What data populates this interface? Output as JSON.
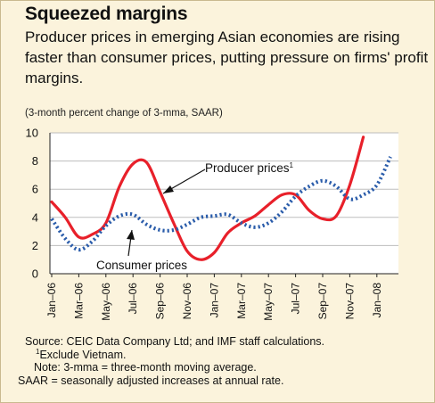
{
  "title": "Squeezed margins",
  "subtitle": "Producer prices in emerging Asian economies are rising faster than consumer prices, putting pressure on firms' profit margins.",
  "units_note": "(3-month percent change of 3-mma, SAAR)",
  "colors": {
    "background": "#fbf3dc",
    "plot_background": "#ffffff",
    "producer": "#e8202a",
    "consumer": "#2a5caa",
    "grid": "#bdbdbd"
  },
  "chart_data": {
    "type": "line",
    "ylim": [
      0,
      10
    ],
    "yticks": [
      0,
      2,
      4,
      6,
      8,
      10
    ],
    "grid": true,
    "x_tick_labels": [
      "Jan–06",
      "Mar–06",
      "May–06",
      "Jul–06",
      "Sep–06",
      "Nov–06",
      "Jan–07",
      "Mar–07",
      "May–07",
      "Jul–07",
      "Sep–07",
      "Nov–07",
      "Jan–08"
    ],
    "x_months": [
      "Jan-06",
      "Feb-06",
      "Mar-06",
      "Apr-06",
      "May-06",
      "Jun-06",
      "Jul-06",
      "Aug-06",
      "Sep-06",
      "Oct-06",
      "Nov-06",
      "Dec-06",
      "Jan-07",
      "Feb-07",
      "Mar-07",
      "Apr-07",
      "May-07",
      "Jun-07",
      "Jul-07",
      "Aug-07",
      "Sep-07",
      "Oct-07",
      "Nov-07",
      "Dec-07",
      "Jan-08",
      "Feb-08"
    ],
    "series": [
      {
        "name": "Producer prices",
        "label_suffix": "1",
        "style": "solid",
        "values": [
          5.1,
          4.0,
          2.6,
          2.8,
          3.6,
          6.2,
          7.8,
          7.9,
          5.8,
          3.6,
          1.6,
          1.0,
          1.5,
          2.9,
          3.6,
          4.1,
          4.9,
          5.6,
          5.6,
          4.5,
          3.9,
          4.1,
          6.3,
          9.7,
          null,
          null
        ]
      },
      {
        "name": "Consumer prices",
        "style": "dotted",
        "values": [
          3.9,
          2.5,
          1.7,
          2.3,
          3.4,
          4.1,
          4.2,
          3.5,
          3.1,
          3.1,
          3.5,
          4.0,
          4.1,
          4.2,
          3.6,
          3.3,
          3.6,
          4.4,
          5.5,
          6.2,
          6.6,
          6.2,
          5.3,
          5.6,
          6.3,
          8.3
        ]
      }
    ],
    "annotations": {
      "producer_label": "Producer prices",
      "producer_superscript": "1",
      "consumer_label": "Consumer prices"
    }
  },
  "notes": {
    "source": "Source: CEIC Data Company Ltd; and IMF staff calculations.",
    "footnote_marker": "1",
    "footnote_text": "Exclude Vietnam.",
    "note": "Note: 3-mma = three-month moving average.",
    "saar": "SAAR = seasonally adjusted increases at annual rate."
  }
}
